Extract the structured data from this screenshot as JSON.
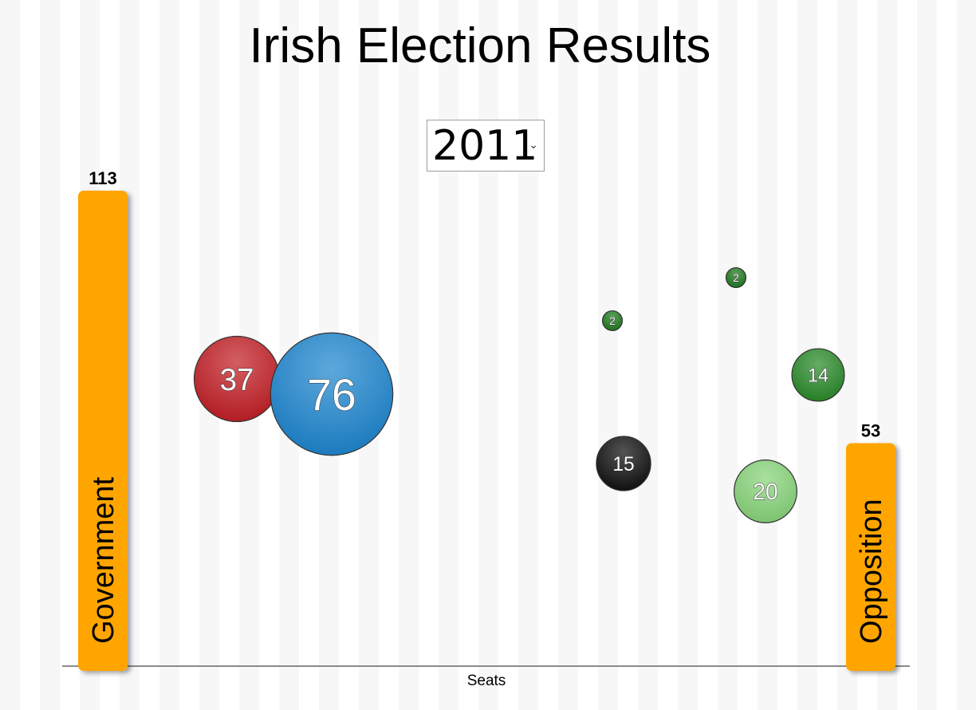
{
  "title": "Irish Election Results",
  "year_select": {
    "selected": "2011",
    "chevron_icon": "chevron-down-icon"
  },
  "chart_data": {
    "type": "bubble",
    "title": "Irish Election Results",
    "xlabel": "Seats",
    "ylabel": "",
    "groups": [
      {
        "name": "Government",
        "value": 113,
        "color": "#ffa500",
        "side": "left"
      },
      {
        "name": "Opposition",
        "value": 53,
        "color": "#ffa500",
        "side": "right"
      }
    ],
    "bubbles": [
      {
        "value": 37,
        "color": "#c21f26",
        "group": "Government"
      },
      {
        "value": 76,
        "color": "#1e86cf",
        "group": "Government"
      },
      {
        "value": 2,
        "color": "#1f7a1f",
        "group": "Opposition"
      },
      {
        "value": 2,
        "color": "#1f7a1f",
        "group": "Opposition"
      },
      {
        "value": 14,
        "color": "#2a8a2a",
        "group": "Opposition"
      },
      {
        "value": 15,
        "color": "#111111",
        "group": "Opposition"
      },
      {
        "value": 20,
        "color": "#88d47a",
        "group": "Opposition"
      }
    ]
  }
}
